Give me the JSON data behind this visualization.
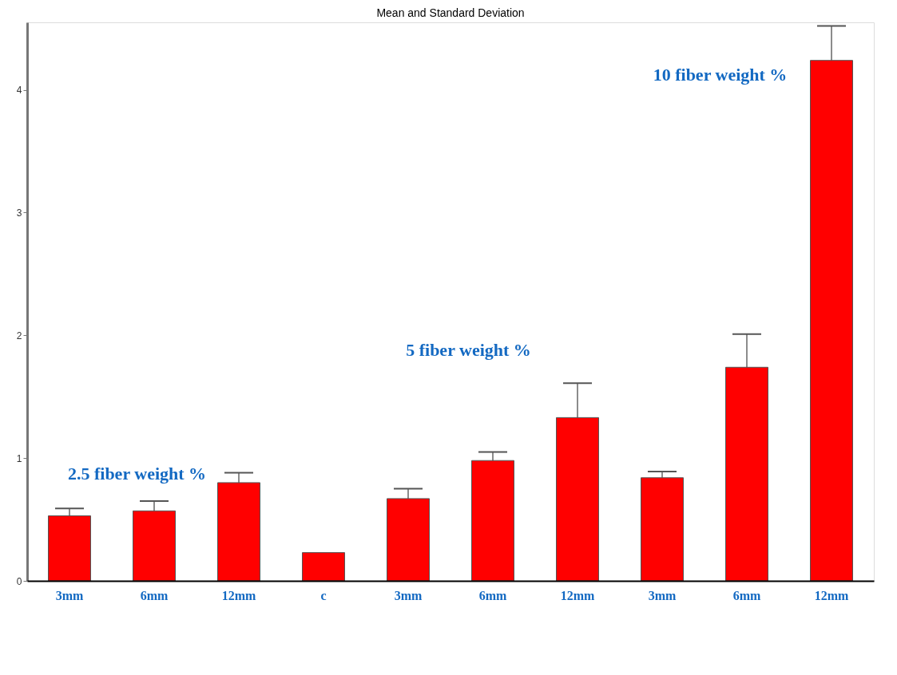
{
  "chart_data": {
    "type": "bar",
    "title": "Mean and Standard Deviation",
    "categories": [
      "3mm",
      "6mm",
      "12mm",
      "c",
      "3mm",
      "6mm",
      "12mm",
      "3mm",
      "6mm",
      "12mm"
    ],
    "values": [
      0.53,
      0.57,
      0.8,
      0.23,
      0.67,
      0.98,
      1.33,
      0.84,
      1.74,
      4.24
    ],
    "errors": [
      0.06,
      0.08,
      0.08,
      null,
      0.08,
      0.07,
      0.28,
      0.05,
      0.27,
      0.28
    ],
    "color": "#ff0000",
    "ylim": [
      0,
      4.55
    ],
    "yticks": [
      0,
      1,
      2,
      3,
      4
    ],
    "annotations": [
      "2.5 fiber weight %",
      "5 fiber weight %",
      "10 fiber weight %"
    ],
    "grid": false
  }
}
